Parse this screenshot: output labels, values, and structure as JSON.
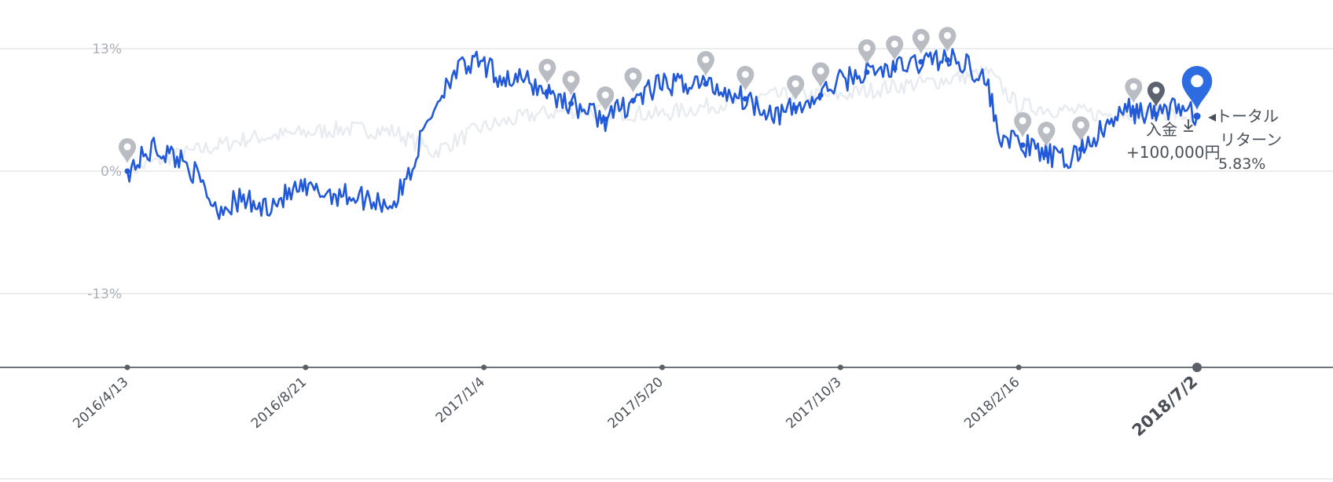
{
  "chart_data": {
    "type": "line",
    "title": "",
    "xlabel": "",
    "ylabel": "",
    "ylim": [
      -20,
      16
    ],
    "y_ticks": [
      "13%",
      "0%",
      "-13%"
    ],
    "y_tick_values": [
      13,
      0,
      -13
    ],
    "x_ticks": [
      "2016/4/13",
      "2016/8/21",
      "2017/1/4",
      "2017/5/20",
      "2017/10/3",
      "2018/2/16",
      "2018/7/2"
    ],
    "x_highlight_tick": "2018/7/2",
    "grid": true,
    "colors": {
      "main": "#2159d8",
      "benchmark": "#e8ebf0",
      "marker": "#b9bcc2",
      "marker_dark": "#5d6470",
      "marker_active": "#2c6be0"
    },
    "series": [
      {
        "key": "portfolio",
        "x": [
          "2016/4/13",
          "2016/5/3",
          "2016/5/28",
          "2016/6/20",
          "2016/7/10",
          "2016/7/22",
          "2016/8/21",
          "2016/9/25",
          "2016/10/15",
          "2016/11/1",
          "2016/11/15",
          "2016/11/25",
          "2016/12/15",
          "2017/1/4",
          "2017/1/20",
          "2017/2/10",
          "2017/3/10",
          "2017/4/10",
          "2017/5/1",
          "2017/5/20",
          "2017/6/20",
          "2017/7/20",
          "2017/8/20",
          "2017/9/15",
          "2017/10/3",
          "2017/10/25",
          "2017/11/20",
          "2017/12/15",
          "2018/1/10",
          "2018/1/25",
          "2018/2/1",
          "2018/2/16",
          "2018/3/5",
          "2018/3/25",
          "2018/4/15",
          "2018/5/10",
          "2018/6/1",
          "2018/6/15",
          "2018/7/2"
        ],
        "values": [
          0.0,
          2.5,
          1.0,
          -4.0,
          -3.0,
          -4.0,
          -2.0,
          -2.5,
          -3.0,
          -3.5,
          0.5,
          5.0,
          10.5,
          11.5,
          10.0,
          9.5,
          7.5,
          5.5,
          7.5,
          9.0,
          9.5,
          8.0,
          6.0,
          7.5,
          9.5,
          10.5,
          11.0,
          12.0,
          11.5,
          9.0,
          4.0,
          3.0,
          2.0,
          1.0,
          3.5,
          6.5,
          6.0,
          7.0,
          5.83
        ]
      },
      {
        "key": "benchmark",
        "x": [
          "2016/4/13",
          "2016/5/15",
          "2016/6/15",
          "2016/7/15",
          "2016/8/21",
          "2016/9/25",
          "2016/11/1",
          "2016/12/1",
          "2017/1/4",
          "2017/2/15",
          "2017/3/20",
          "2017/5/20",
          "2017/7/1",
          "2017/8/15",
          "2017/10/3",
          "2017/11/15",
          "2017/12/15",
          "2018/1/25",
          "2018/2/16",
          "2018/3/20",
          "2018/4/20",
          "2018/6/1",
          "2018/7/2"
        ],
        "values": [
          0.0,
          1.5,
          2.5,
          3.5,
          4.0,
          4.5,
          4.2,
          2.0,
          4.5,
          6.0,
          6.5,
          6.0,
          7.0,
          8.0,
          8.0,
          9.0,
          9.5,
          10.5,
          7.0,
          6.5,
          6.0,
          6.5,
          5.5
        ]
      }
    ],
    "event_markers_dates": [
      "2016/4/13",
      "2017/2/25",
      "2017/3/15",
      "2017/4/10",
      "2017/5/1",
      "2017/6/25",
      "2017/7/25",
      "2017/9/1",
      "2017/9/20",
      "2017/10/25",
      "2017/11/15",
      "2017/12/5",
      "2017/12/25",
      "2018/2/20",
      "2018/3/10",
      "2018/4/5",
      "2018/5/15",
      "2018/6/1"
    ],
    "annotation_deposit": {
      "label": "入金",
      "icon": "download-tray-icon",
      "amount": "+100,000円"
    },
    "annotation_total": {
      "label_line1": "◂トータル",
      "label_line2": "リターン",
      "value": "5.83%"
    }
  }
}
